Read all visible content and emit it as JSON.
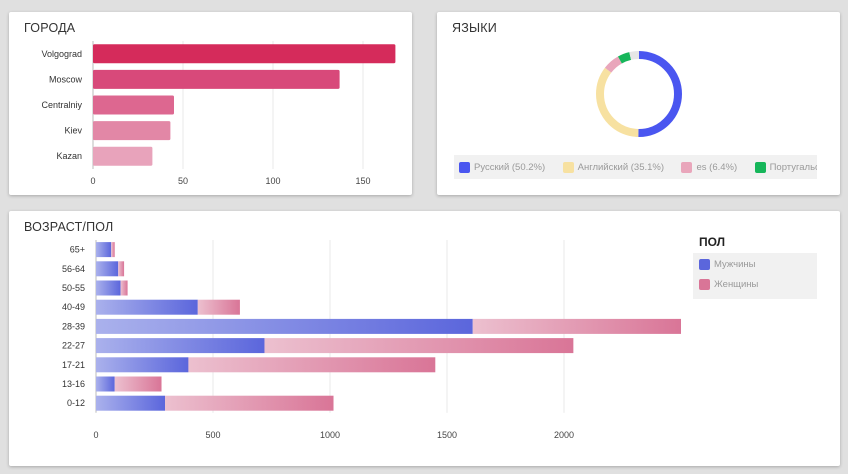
{
  "cities": {
    "title": "ГОРОДА",
    "chart_data": {
      "type": "bar",
      "orientation": "horizontal",
      "categories": [
        "Volgograd",
        "Moscow",
        "Centralniy",
        "Kiev",
        "Kazan"
      ],
      "values": [
        168,
        137,
        45,
        43,
        33
      ],
      "colors": [
        "#d52b5b",
        "#d8497a",
        "#dd6790",
        "#e287a6",
        "#e8a3bb"
      ],
      "xlim": [
        0,
        175
      ],
      "xticks": [
        0,
        50,
        100,
        150
      ]
    }
  },
  "languages": {
    "title": "ЯЗЫКИ",
    "chart_data": {
      "type": "pie",
      "donut": true,
      "labels": [
        "Русский (50.2%)",
        "Английский (35.1%)",
        "es (6.4%)",
        "Португальск"
      ],
      "values": [
        50.2,
        35.1,
        6.4,
        4.5
      ],
      "other": 3.8,
      "colors": [
        "#4a56f0",
        "#f7e1a1",
        "#e9a6bb",
        "#16b65a"
      ],
      "other_color": "#e6e6e6"
    }
  },
  "age_gender": {
    "title": "ВОЗРАСТ/ПОЛ",
    "legend_title": "ПОЛ",
    "chart_data": {
      "type": "bar",
      "orientation": "horizontal",
      "stacked": true,
      "categories": [
        "65+",
        "56-64",
        "50-55",
        "40-49",
        "28-39",
        "22-27",
        "17-21",
        "13-16",
        "0-12"
      ],
      "series": [
        {
          "name": "Мужчины",
          "color": "#5b66dc",
          "values": [
            65,
            95,
            105,
            435,
            1610,
            720,
            395,
            80,
            295
          ]
        },
        {
          "name": "Женщины",
          "color": "#d97597",
          "values": [
            15,
            25,
            30,
            180,
            890,
            1320,
            1055,
            200,
            720
          ]
        }
      ],
      "xlim": [
        0,
        2500
      ],
      "xticks": [
        0,
        500,
        1000,
        1500,
        2000
      ]
    }
  }
}
